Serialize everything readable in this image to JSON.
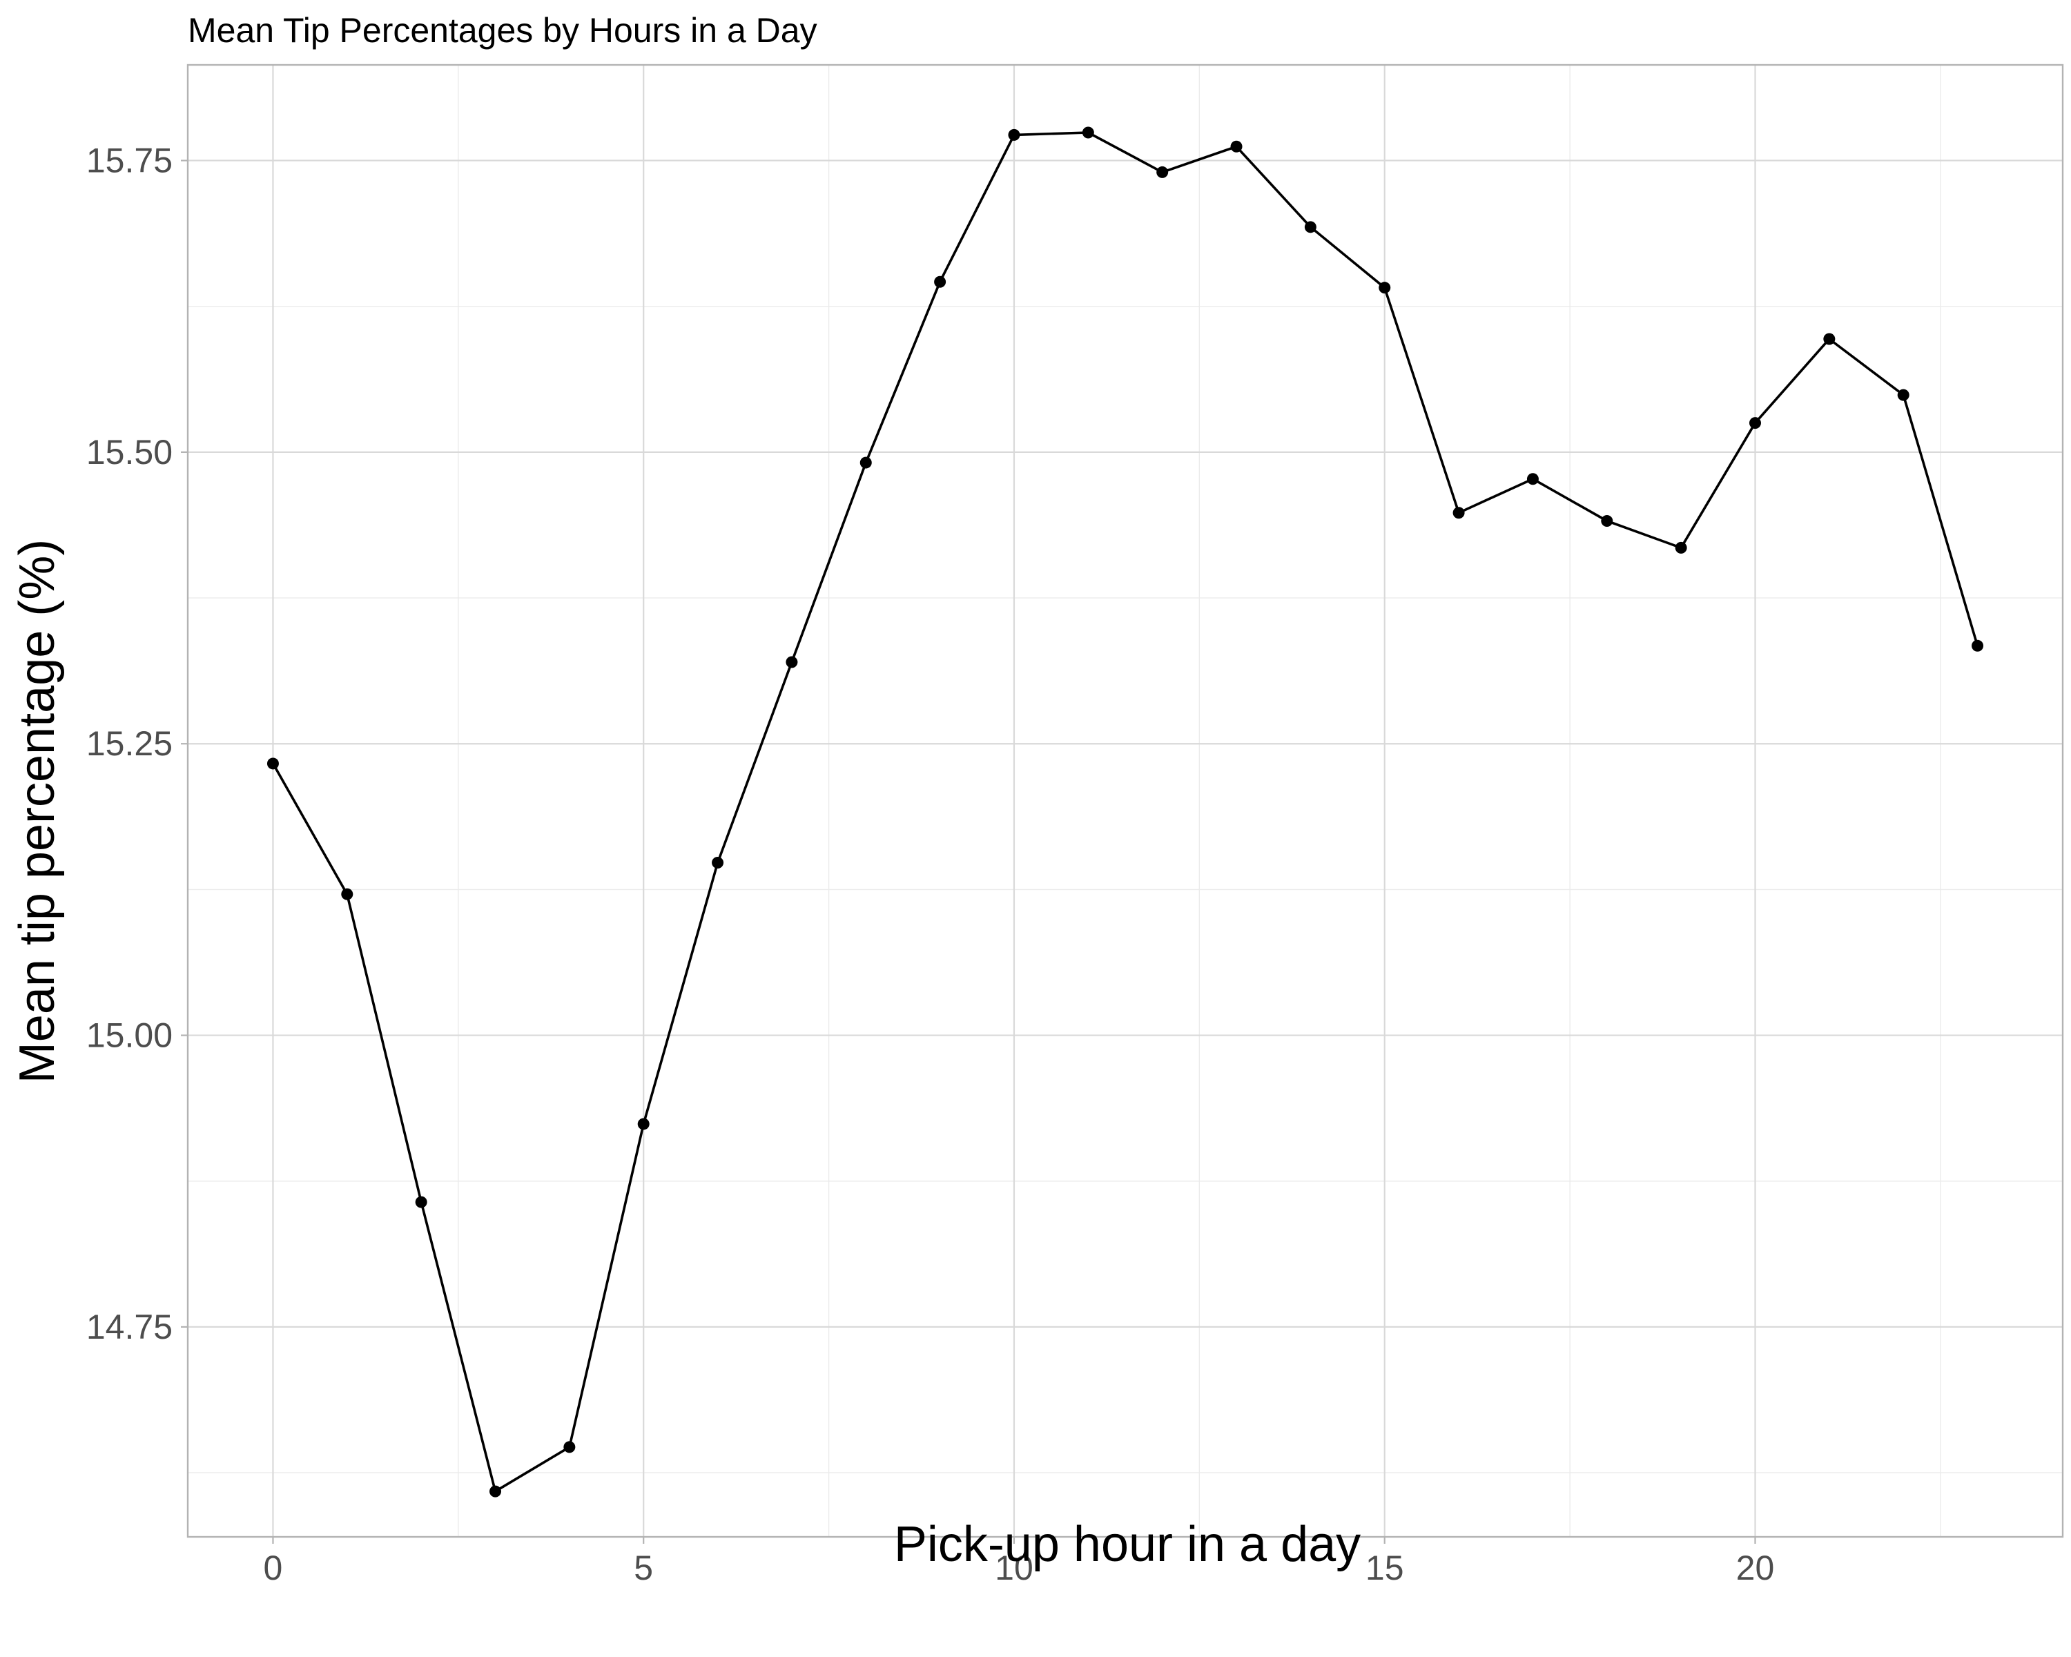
{
  "chart_data": {
    "type": "line",
    "title": "Mean Tip Percentages by Hours in a Day",
    "xlabel": "Pick-up hour in a day",
    "ylabel": "Mean tip percentage (%)",
    "x": [
      0,
      1,
      2,
      3,
      4,
      5,
      6,
      7,
      8,
      9,
      10,
      11,
      12,
      13,
      14,
      15,
      16,
      17,
      18,
      19,
      20,
      21,
      22,
      23
    ],
    "series": [
      {
        "values": [
          15.233,
          15.121,
          14.857,
          14.609,
          14.647,
          14.924,
          15.148,
          15.32,
          15.491,
          15.646,
          15.772,
          15.774,
          15.74,
          15.762,
          15.693,
          15.641,
          15.448,
          15.477,
          15.441,
          15.418,
          15.525,
          15.597,
          15.549,
          15.334
        ]
      }
    ],
    "xlim": [
      -1.15,
      24.15
    ],
    "ylim": [
      14.57,
      15.832
    ],
    "x_ticks": [
      0,
      5,
      10,
      15,
      20
    ],
    "x_tick_labels": [
      "0",
      "5",
      "10",
      "15",
      "20"
    ],
    "x_minor": [
      2.5,
      7.5,
      12.5,
      17.5,
      22.5
    ],
    "y_ticks": [
      14.75,
      15.0,
      15.25,
      15.5,
      15.75
    ],
    "y_tick_labels": [
      "14.75",
      "15.00",
      "15.25",
      "15.50",
      "15.75"
    ],
    "y_minor": [
      14.625,
      14.875,
      15.125,
      15.375,
      15.625
    ],
    "grid": true,
    "colors": {
      "line": "#000000",
      "point": "#000000",
      "grid_major": "#d9d9d9",
      "grid_minor": "#ebebeb",
      "border": "#b3b3b3"
    }
  }
}
